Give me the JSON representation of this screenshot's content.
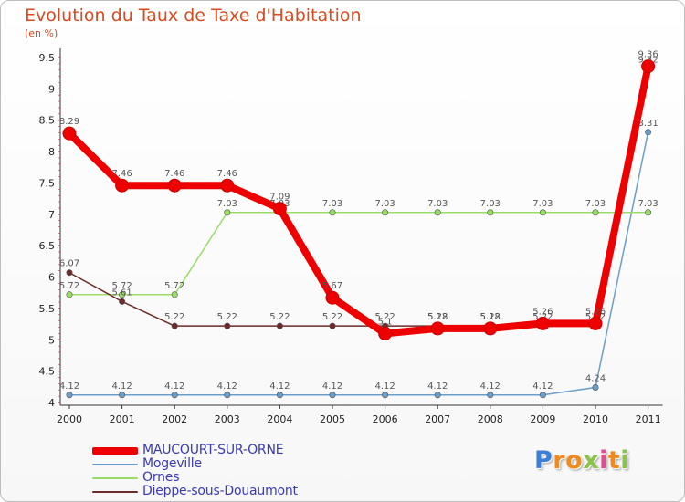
{
  "chart_data": {
    "type": "line",
    "title": "Evolution du Taux de Taxe d'Habitation",
    "subtitle": "(en %)",
    "x": [
      "2000",
      "2001",
      "2002",
      "2003",
      "2004",
      "2005",
      "2006",
      "2007",
      "2008",
      "2009",
      "2010",
      "2011"
    ],
    "ylim": [
      4,
      9.5
    ],
    "yticks": [
      "4",
      "4.5",
      "5",
      "5.5",
      "6",
      "6.5",
      "7",
      "7.5",
      "8",
      "8.5",
      "9",
      "9.5"
    ],
    "grid": false,
    "legend_position": "bottom-left",
    "series": [
      {
        "name": "MAUCOURT-SUR-ORNE",
        "color": "#ee0000",
        "values": [
          8.29,
          7.46,
          7.46,
          7.46,
          7.09,
          5.67,
          5.1,
          5.18,
          5.18,
          5.26,
          5.26,
          9.36
        ],
        "labels": [
          "8.29",
          "7.46",
          "7.46",
          "7.46",
          "7.09",
          "5.67",
          "5.1",
          "5.18",
          "5.18",
          "5.26",
          "5.26",
          "9.36"
        ]
      },
      {
        "name": "Mogeville",
        "color": "#6b9ec9",
        "values": [
          4.12,
          4.12,
          4.12,
          4.12,
          4.12,
          4.12,
          4.12,
          4.12,
          4.12,
          4.12,
          4.24,
          8.31
        ],
        "labels": [
          "4.12",
          "4.12",
          "4.12",
          "4.12",
          "4.12",
          "4.12",
          "4.12",
          "4.12",
          "4.12",
          "4.12",
          "4.24",
          "8.31"
        ]
      },
      {
        "name": "Ornes",
        "color": "#99dd66",
        "values": [
          5.72,
          5.72,
          5.72,
          7.03,
          7.03,
          7.03,
          7.03,
          7.03,
          7.03,
          7.03,
          7.03,
          7.03
        ],
        "labels": [
          "5.72",
          "5.72",
          "5.72",
          "7.03",
          "7.03",
          "7.03",
          "7.03",
          "7.03",
          "7.03",
          "7.03",
          "7.03",
          "7.03"
        ]
      },
      {
        "name": "Dieppe-sous-Douaumont",
        "color": "#6b2b2b",
        "values": [
          6.07,
          5.61,
          5.22,
          5.22,
          5.22,
          5.22,
          5.22,
          5.22,
          5.22,
          5.22,
          5.22,
          9.32
        ],
        "labels": [
          "6.07",
          "5.61",
          "5.22",
          "5.22",
          "5.22",
          "5.22",
          "5.22",
          "5.22",
          "5.22",
          "5.22",
          "5.22",
          "9.32"
        ]
      }
    ]
  },
  "logo": {
    "letters": [
      "P",
      "r",
      "o",
      "x",
      "i",
      "t",
      "i"
    ],
    "colors": [
      "#3b7fd9",
      "#f08a1c",
      "#f08a1c",
      "#8bc34a",
      "#e94a8a",
      "#f08a1c",
      "#8bc34a"
    ]
  }
}
